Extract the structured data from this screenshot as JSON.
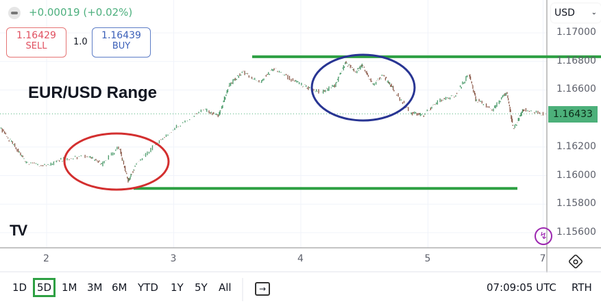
{
  "header": {
    "change": "+0.00019 (+0.02%)",
    "sell_price": "1.16429",
    "sell_label": "SELL",
    "spread": "1.0",
    "buy_price": "1.16439",
    "buy_label": "BUY",
    "currency": "USD"
  },
  "toolbar": {
    "ranges": [
      "1D",
      "5D",
      "1M",
      "3M",
      "6M",
      "YTD",
      "1Y",
      "5Y",
      "All"
    ],
    "active_range": "5D",
    "time": "07:09:05 UTC",
    "session": "RTH"
  },
  "colors": {
    "up": "#26a69a",
    "down": "#ef5350",
    "range_lines": "#2ea043",
    "low_circle": "#d32f2f",
    "high_circle": "#283593",
    "last_price_bg": "#4cb07a"
  },
  "chart_data": {
    "type": "line",
    "title": "EUR/USD Range",
    "ylim": [
      1.1552,
      1.1712
    ],
    "yticks": [
      "1.17000",
      "1.16800",
      "1.16600",
      "1.16200",
      "1.16000",
      "1.15800",
      "1.15600"
    ],
    "xticks": [
      {
        "t": 2,
        "label": "2"
      },
      {
        "t": 3,
        "label": "3"
      },
      {
        "t": 4,
        "label": "4"
      },
      {
        "t": 5,
        "label": "5"
      },
      {
        "t": 5.906,
        "label": "7"
      }
    ],
    "last_price": "1.16433",
    "series": [
      {
        "x": [
          1.633,
          1.741,
          1.849,
          2.011,
          2.146,
          2.334,
          2.442,
          2.577,
          2.647,
          2.712,
          2.873,
          3.035,
          3.251,
          3.358,
          3.439,
          3.547,
          3.682,
          3.79,
          3.951,
          4.059,
          4.167,
          4.275,
          4.356,
          4.437,
          4.491,
          4.571,
          4.652,
          4.733,
          4.868,
          4.976,
          5.084,
          5.218,
          5.326,
          5.38,
          5.515,
          5.623,
          5.677,
          5.757,
          5.919
        ],
        "y": [
          1.16343,
          1.16223,
          1.16089,
          1.16065,
          1.16118,
          1.16137,
          1.16079,
          1.16199,
          1.15959,
          1.16079,
          1.16223,
          1.16343,
          1.16463,
          1.16415,
          1.16631,
          1.16727,
          1.16655,
          1.16751,
          1.16664,
          1.16616,
          1.16583,
          1.16631,
          1.16789,
          1.16727,
          1.16775,
          1.16631,
          1.16703,
          1.16607,
          1.16439,
          1.16424,
          1.1652,
          1.16559,
          1.16712,
          1.16535,
          1.16463,
          1.16583,
          1.16319,
          1.16463,
          1.16433
        ]
      }
    ],
    "annotations": {
      "resistance": 1.16833,
      "support": 1.1591
    }
  }
}
